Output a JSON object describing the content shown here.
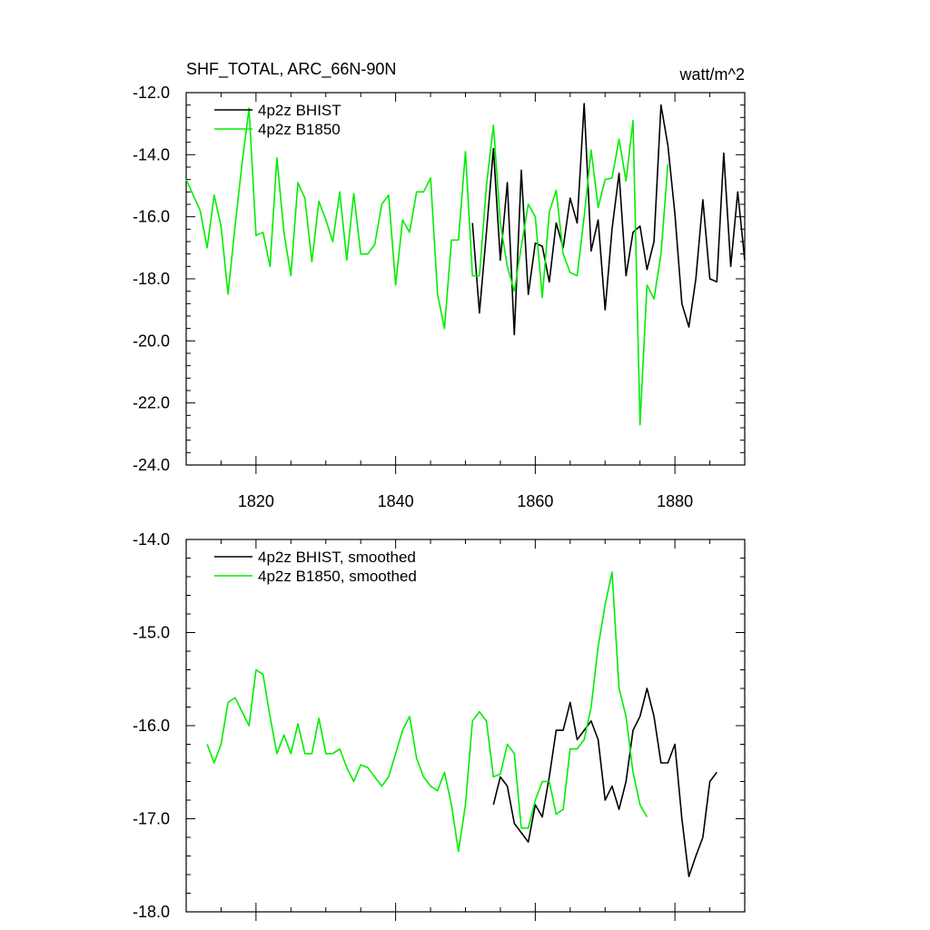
{
  "chart_data": [
    {
      "type": "line",
      "title": "SHF_TOTAL, ARC_66N-90N",
      "units": "watt/m^2",
      "xlabel": "",
      "ylabel": "",
      "xlim": [
        1810,
        1890
      ],
      "ylim": [
        -24.0,
        -12.0
      ],
      "x_ticks": [
        1820,
        1840,
        1860,
        1880
      ],
      "y_ticks": [
        -24.0,
        -22.0,
        -20.0,
        -18.0,
        -16.0,
        -14.0,
        -12.0
      ],
      "y_tick_labels": [
        "-24.0",
        "-22.0",
        "-20.0",
        "-18.0",
        "-16.0",
        "-14.0",
        "-12.0"
      ],
      "x_labels_shown": true,
      "legend_position": "top-left",
      "grid": false,
      "series": [
        {
          "name": "4p2z BHIST",
          "color": "#000000",
          "x_start": 1851,
          "values": [
            -16.2,
            -19.1,
            -16.5,
            -13.8,
            -17.4,
            -14.9,
            -19.8,
            -14.5,
            -18.5,
            -16.85,
            -16.95,
            -18.1,
            -16.2,
            -17.0,
            -15.4,
            -16.2,
            -12.35,
            -17.1,
            -16.1,
            -19.0,
            -16.4,
            -14.6,
            -17.9,
            -16.5,
            -16.3,
            -17.7,
            -16.8,
            -12.4,
            -13.7,
            -15.9,
            -18.8,
            -19.55,
            -18.0,
            -15.45,
            -18.0,
            -18.1,
            -13.95,
            -17.6,
            -15.2,
            -17.4
          ]
        },
        {
          "name": "4p2z B1850",
          "color": "#00ee00",
          "x_start": 1810,
          "values": [
            -14.8,
            -15.3,
            -15.8,
            -17.0,
            -15.3,
            -16.3,
            -18.5,
            -16.3,
            -14.3,
            -12.5,
            -16.6,
            -16.5,
            -17.6,
            -14.1,
            -16.5,
            -17.9,
            -14.9,
            -15.4,
            -17.45,
            -15.5,
            -16.1,
            -16.8,
            -15.2,
            -17.4,
            -15.25,
            -17.2,
            -17.2,
            -16.9,
            -15.6,
            -15.3,
            -18.2,
            -16.1,
            -16.5,
            -15.2,
            -15.2,
            -14.75,
            -18.5,
            -19.6,
            -16.75,
            -16.75,
            -13.9,
            -17.9,
            -17.9,
            -15.0,
            -13.05,
            -16.2,
            -17.6,
            -18.4,
            -16.95,
            -15.6,
            -16.0,
            -18.6,
            -15.85,
            -15.15,
            -17.2,
            -17.8,
            -17.9,
            -16.0,
            -13.85,
            -15.7,
            -14.8,
            -14.75,
            -13.5,
            -14.85,
            -12.9,
            -22.7,
            -18.2,
            -18.65,
            -17.2,
            -14.3
          ]
        }
      ]
    },
    {
      "type": "line",
      "title": "",
      "xlabel": "",
      "ylabel": "",
      "xlim": [
        1810,
        1890
      ],
      "ylim": [
        -18.0,
        -14.0
      ],
      "x_ticks": [
        1820,
        1840,
        1860,
        1880
      ],
      "y_ticks": [
        -18.0,
        -17.0,
        -16.0,
        -15.0,
        -14.0
      ],
      "y_tick_labels": [
        "-18.0",
        "-17.0",
        "-16.0",
        "-15.0",
        "-14.0"
      ],
      "x_labels_shown": false,
      "legend_position": "top-left",
      "grid": false,
      "series": [
        {
          "name": "4p2z BHIST, smoothed",
          "color": "#000000",
          "x_start": 1854,
          "values": [
            -16.85,
            -16.55,
            -16.65,
            -17.05,
            -17.15,
            -17.25,
            -16.85,
            -16.98,
            -16.55,
            -16.05,
            -16.05,
            -15.75,
            -16.15,
            -16.05,
            -15.95,
            -16.15,
            -16.8,
            -16.65,
            -16.9,
            -16.6,
            -16.05,
            -15.9,
            -15.6,
            -15.9,
            -16.4,
            -16.4,
            -16.2,
            -17.0,
            -17.62,
            -17.4,
            -17.2,
            -16.6,
            -16.5
          ]
        },
        {
          "name": "4p2z B1850, smoothed",
          "color": "#00ee00",
          "x_start": 1813,
          "values": [
            -16.2,
            -16.4,
            -16.2,
            -15.75,
            -15.7,
            -15.85,
            -16.0,
            -15.4,
            -15.45,
            -15.9,
            -16.3,
            -16.1,
            -16.3,
            -15.98,
            -16.3,
            -16.3,
            -15.92,
            -16.3,
            -16.3,
            -16.25,
            -16.45,
            -16.6,
            -16.42,
            -16.45,
            -16.55,
            -16.65,
            -16.55,
            -16.3,
            -16.05,
            -15.9,
            -16.35,
            -16.55,
            -16.65,
            -16.7,
            -16.5,
            -16.85,
            -17.35,
            -16.85,
            -15.95,
            -15.85,
            -15.95,
            -16.55,
            -16.52,
            -16.2,
            -16.3,
            -17.1,
            -17.1,
            -16.8,
            -16.6,
            -16.6,
            -16.95,
            -16.9,
            -16.25,
            -16.25,
            -16.15,
            -15.8,
            -15.15,
            -14.7,
            -14.35,
            -15.6,
            -15.9,
            -16.5,
            -16.85,
            -16.98
          ]
        }
      ]
    }
  ]
}
